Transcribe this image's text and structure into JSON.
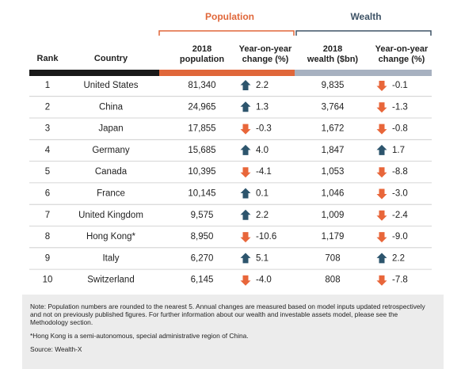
{
  "groups": [
    {
      "label": "Population"
    },
    {
      "label": "Wealth"
    }
  ],
  "columns": [
    [
      "Rank"
    ],
    [
      "Country"
    ],
    [
      "2018",
      "population"
    ],
    [
      "Year-on-year",
      "change (%)"
    ],
    [
      "2018",
      "wealth ($bn)"
    ],
    [
      "Year-on-year",
      "change (%)"
    ]
  ],
  "table": {
    "rows": [
      [
        "1",
        "United States",
        "81,340",
        "2.2",
        "9,835",
        "-0.1"
      ],
      [
        "2",
        "China",
        "24,965",
        "1.3",
        "3,764",
        "-1.3"
      ],
      [
        "3",
        "Japan",
        "17,855",
        "-0.3",
        "1,672",
        "-0.8"
      ],
      [
        "4",
        "Germany",
        "15,685",
        "4.0",
        "1,847",
        "1.7"
      ],
      [
        "5",
        "Canada",
        "10,395",
        "-4.1",
        "1,053",
        "-8.8"
      ],
      [
        "6",
        "France",
        "10,145",
        "0.1",
        "1,046",
        "-3.0"
      ],
      [
        "7",
        "United Kingdom",
        "9,575",
        "2.2",
        "1,009",
        "-2.4"
      ],
      [
        "8",
        "Hong Kong*",
        "8,950",
        "-10.6",
        "1,179",
        "-9.0"
      ],
      [
        "9",
        "Italy",
        "6,270",
        "5.1",
        "708",
        "2.2"
      ],
      [
        "10",
        "Switzerland",
        "6,145",
        "-4.0",
        "808",
        "-7.8"
      ]
    ]
  },
  "notes": [
    "Note: Population numbers are rounded to the nearest 5. Annual changes are measured based on model inputs updated retrospectively and not on previously published figures. For further information about our wealth and investable assets model, please see the Methodology section.",
    "*Hong Kong is a semi-autonomous, special administrative region of China.",
    "Source: Wealth-X"
  ]
}
